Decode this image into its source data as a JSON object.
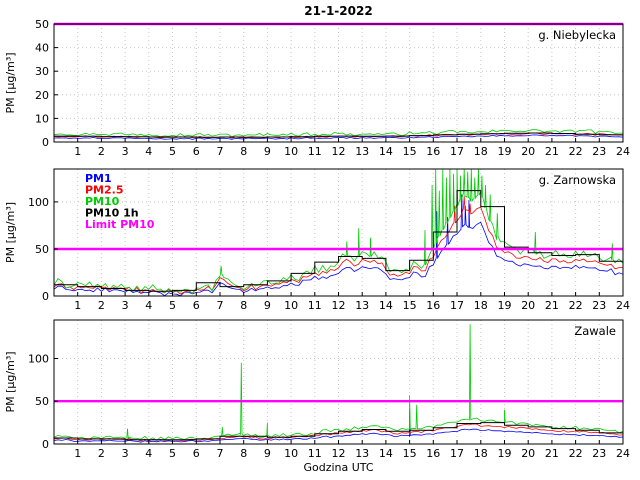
{
  "title": "21-1-2022",
  "xlabel": "Godzina UTC",
  "ylabel": "PM [µg/m³]",
  "x_ticks": [
    1,
    2,
    3,
    4,
    5,
    6,
    7,
    8,
    9,
    10,
    11,
    12,
    13,
    14,
    15,
    16,
    17,
    18,
    19,
    20,
    21,
    22,
    23,
    24
  ],
  "x_range": [
    0,
    24
  ],
  "colors": {
    "pm1": "#0000ff",
    "pm25": "#ff0000",
    "pm10": "#00cc00",
    "pm10_1h": "#000000",
    "limit": "#ff00ff",
    "grid": "#c8c8c8",
    "frame": "#000000"
  },
  "legend": {
    "position": "top-left-of-middle-panel",
    "items": [
      {
        "label": "PM1",
        "color": "#0000ff"
      },
      {
        "label": "PM2.5",
        "color": "#ff0000"
      },
      {
        "label": "PM10",
        "color": "#00cc00"
      },
      {
        "label": "PM10 1h",
        "color": "#000000"
      },
      {
        "label": "Limit PM10",
        "color": "#ff00ff"
      }
    ]
  },
  "chart_data": [
    {
      "type": "line",
      "title": "g. Niebylecka",
      "ylim": [
        0,
        50
      ],
      "y_ticks": [
        0,
        10,
        20,
        30,
        40,
        50
      ],
      "limit_value": 50,
      "show_legend": false,
      "grid": true,
      "base": [
        [
          0,
          2.5
        ],
        [
          2,
          2.3
        ],
        [
          4,
          2.2
        ],
        [
          6,
          2.0
        ],
        [
          8,
          2.0
        ],
        [
          10,
          2.2
        ],
        [
          12,
          2.4
        ],
        [
          14,
          2.4
        ],
        [
          16,
          2.8
        ],
        [
          18,
          3.2
        ],
        [
          20,
          3.6
        ],
        [
          22,
          3.4
        ],
        [
          24,
          3.0
        ]
      ],
      "series": [
        {
          "name": "PM1",
          "color": "#0000ff",
          "scale": 0.85,
          "offset": -0.3,
          "noise": 0.35
        },
        {
          "name": "PM2.5",
          "color": "#ff0000",
          "scale": 1.0,
          "offset": 0,
          "noise": 0.45
        },
        {
          "name": "PM10",
          "color": "#00cc00",
          "scale": 1.2,
          "offset": 0.5,
          "noise": 0.9
        },
        {
          "name": "PM10 1h",
          "color": "#000000",
          "step_hourly": [
            2.5,
            2.4,
            2.3,
            2.2,
            2.1,
            2.1,
            2.0,
            2.1,
            2.0,
            2.1,
            2.2,
            2.4,
            2.5,
            2.4,
            2.5,
            2.7,
            3.0,
            3.3,
            3.5,
            3.7,
            3.8,
            3.6,
            3.3,
            3.1
          ]
        }
      ]
    },
    {
      "type": "line",
      "title": "g. Zarnowska",
      "ylim": [
        0,
        135
      ],
      "y_ticks": [
        0,
        50,
        100
      ],
      "limit_value": 50,
      "show_legend": true,
      "grid": true,
      "base": [
        [
          0,
          13
        ],
        [
          1,
          11
        ],
        [
          2,
          10
        ],
        [
          3,
          8
        ],
        [
          4,
          6
        ],
        [
          5,
          5
        ],
        [
          6,
          6
        ],
        [
          6.8,
          9
        ],
        [
          7,
          24
        ],
        [
          7.3,
          14
        ],
        [
          7.6,
          10
        ],
        [
          8,
          9
        ],
        [
          8.5,
          10
        ],
        [
          9,
          13
        ],
        [
          9.5,
          15
        ],
        [
          10,
          18
        ],
        [
          10.5,
          22
        ],
        [
          11,
          27
        ],
        [
          11.5,
          30
        ],
        [
          12,
          34
        ],
        [
          12.3,
          42
        ],
        [
          12.6,
          38
        ],
        [
          13,
          44
        ],
        [
          13.3,
          40
        ],
        [
          13.6,
          46
        ],
        [
          14,
          32
        ],
        [
          14.3,
          26
        ],
        [
          14.6,
          24
        ],
        [
          15,
          30
        ],
        [
          15.3,
          38
        ],
        [
          15.6,
          30
        ],
        [
          16,
          50
        ],
        [
          16.3,
          65
        ],
        [
          16.6,
          78
        ],
        [
          17,
          95
        ],
        [
          17.3,
          108
        ],
        [
          17.6,
          100
        ],
        [
          18,
          108
        ],
        [
          18.3,
          85
        ],
        [
          18.6,
          65
        ],
        [
          19,
          55
        ],
        [
          19.5,
          50
        ],
        [
          20,
          48
        ],
        [
          20.5,
          44
        ],
        [
          21,
          42
        ],
        [
          21.5,
          44
        ],
        [
          22,
          46
        ],
        [
          22.5,
          44
        ],
        [
          23,
          40
        ],
        [
          23.5,
          38
        ],
        [
          24,
          34
        ]
      ],
      "series": [
        {
          "name": "PM1",
          "color": "#0000ff",
          "scale": 0.72,
          "offset": -1,
          "noise": 3,
          "spikes": [
            [
              16.15,
              90
            ],
            [
              16.6,
              84
            ],
            [
              17.2,
              108
            ],
            [
              17.35,
              96
            ],
            [
              17.5,
              102
            ]
          ]
        },
        {
          "name": "PM2.5",
          "color": "#ff0000",
          "scale": 0.86,
          "offset": 0,
          "noise": 4,
          "spikes": [
            [
              16.9,
              96
            ],
            [
              17.3,
              106
            ],
            [
              17.55,
              98
            ]
          ]
        },
        {
          "name": "PM10",
          "color": "#00cc00",
          "scale": 1.0,
          "offset": 1,
          "noise": 6,
          "spikes": [
            [
              7.05,
              32
            ],
            [
              12.35,
              58
            ],
            [
              12.85,
              72
            ],
            [
              13.35,
              62
            ],
            [
              15.65,
              70
            ],
            [
              15.95,
              118
            ],
            [
              16.1,
              135
            ],
            [
              16.25,
              112
            ],
            [
              16.4,
              135
            ],
            [
              16.55,
              126
            ],
            [
              16.7,
              135
            ],
            [
              16.85,
              130
            ],
            [
              17.0,
              135
            ],
            [
              17.15,
              128
            ],
            [
              17.3,
              135
            ],
            [
              17.45,
              132
            ],
            [
              17.6,
              135
            ],
            [
              17.75,
              126
            ],
            [
              17.9,
              135
            ],
            [
              18.05,
              128
            ],
            [
              18.2,
              118
            ],
            [
              18.4,
              108
            ],
            [
              18.7,
              88
            ],
            [
              20.3,
              68
            ],
            [
              23.55,
              56
            ]
          ]
        },
        {
          "name": "PM10 1h",
          "color": "#000000",
          "step_hourly": [
            12,
            10,
            8,
            6,
            5,
            6,
            14,
            10,
            12,
            16,
            24,
            36,
            42,
            40,
            27,
            38,
            68,
            112,
            95,
            52,
            46,
            43,
            44,
            37
          ]
        }
      ]
    },
    {
      "type": "line",
      "title": "Zawale",
      "ylim": [
        0,
        145
      ],
      "y_ticks": [
        0,
        50,
        100
      ],
      "limit_value": 50,
      "show_legend": false,
      "grid": true,
      "base": [
        [
          0,
          7
        ],
        [
          1,
          6.5
        ],
        [
          2,
          6
        ],
        [
          3,
          5.5
        ],
        [
          4,
          5
        ],
        [
          5,
          5
        ],
        [
          6,
          5.5
        ],
        [
          7,
          7
        ],
        [
          7.5,
          8
        ],
        [
          8,
          10
        ],
        [
          8.5,
          8
        ],
        [
          9,
          8
        ],
        [
          10,
          9
        ],
        [
          11,
          11
        ],
        [
          12,
          14
        ],
        [
          13,
          17
        ],
        [
          13.5,
          18
        ],
        [
          14,
          16
        ],
        [
          14.5,
          14
        ],
        [
          15,
          15
        ],
        [
          15.5,
          16
        ],
        [
          16,
          18
        ],
        [
          16.5,
          20
        ],
        [
          17,
          23
        ],
        [
          17.5,
          25
        ],
        [
          18,
          24
        ],
        [
          18.5,
          23
        ],
        [
          19,
          22
        ],
        [
          20,
          20
        ],
        [
          21,
          18
        ],
        [
          22,
          16
        ],
        [
          23,
          14
        ],
        [
          24,
          12
        ]
      ],
      "series": [
        {
          "name": "PM1",
          "color": "#0000ff",
          "scale": 0.7,
          "offset": -0.5,
          "noise": 1.2,
          "spikes": [
            [
              15.0,
              40
            ]
          ]
        },
        {
          "name": "PM2.5",
          "color": "#ff0000",
          "scale": 0.9,
          "offset": 0,
          "noise": 1.6
        },
        {
          "name": "PM10",
          "color": "#00cc00",
          "scale": 1.1,
          "offset": 1,
          "noise": 2.8,
          "spikes": [
            [
              3.1,
              18
            ],
            [
              7.1,
              20
            ],
            [
              7.9,
              95
            ],
            [
              9.0,
              25
            ],
            [
              15.0,
              57
            ],
            [
              15.3,
              46
            ],
            [
              17.55,
              140
            ],
            [
              19.0,
              40
            ]
          ]
        },
        {
          "name": "PM10 1h",
          "color": "#000000",
          "step_hourly": [
            7,
            6,
            6,
            5,
            5,
            5,
            6,
            9,
            9,
            8,
            9,
            12,
            15,
            17,
            15,
            16,
            19,
            24,
            25,
            22,
            20,
            18,
            16,
            13
          ]
        }
      ]
    }
  ]
}
